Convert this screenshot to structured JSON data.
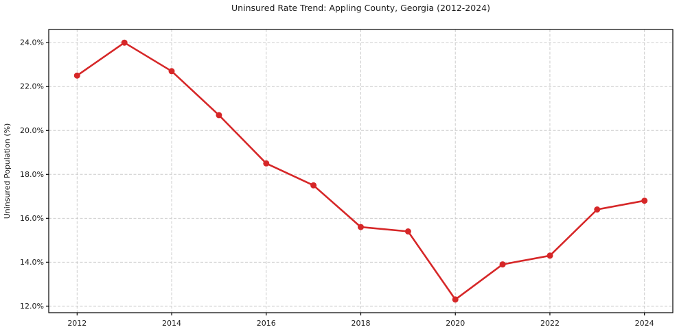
{
  "page": {
    "title": "Uninsured Rate Trend: Appling County, Georgia (2012-2024)"
  },
  "chart_data": {
    "type": "line",
    "title": "Uninsured Rate Trend: Appling County, Georgia (2012-2024)",
    "xlabel": "",
    "ylabel": "Uninsured Population (%)",
    "x": [
      2012,
      2013,
      2014,
      2015,
      2016,
      2017,
      2018,
      2019,
      2020,
      2021,
      2022,
      2023,
      2024
    ],
    "values": [
      22.5,
      24.0,
      22.7,
      20.7,
      18.5,
      17.5,
      15.6,
      15.4,
      12.3,
      13.9,
      14.3,
      16.4,
      16.8
    ],
    "xlim": [
      2011.4,
      2024.6
    ],
    "ylim": [
      11.7,
      24.6
    ],
    "x_ticks": [
      2012,
      2014,
      2016,
      2018,
      2020,
      2022,
      2024
    ],
    "y_ticks": [
      12,
      14,
      16,
      18,
      20,
      22,
      24
    ],
    "y_tick_decimals": 1,
    "y_tick_suffix": "%",
    "grid": true,
    "legend": false,
    "line_color": "#d62728",
    "marker_color": "#d62728",
    "marker": "o",
    "line_width": 2.6,
    "marker_radius": 4.5,
    "grid_color": "#cccccc",
    "axis_color": "#000000",
    "text_color": "#1a1a1a",
    "background_color": "#ffffff"
  }
}
